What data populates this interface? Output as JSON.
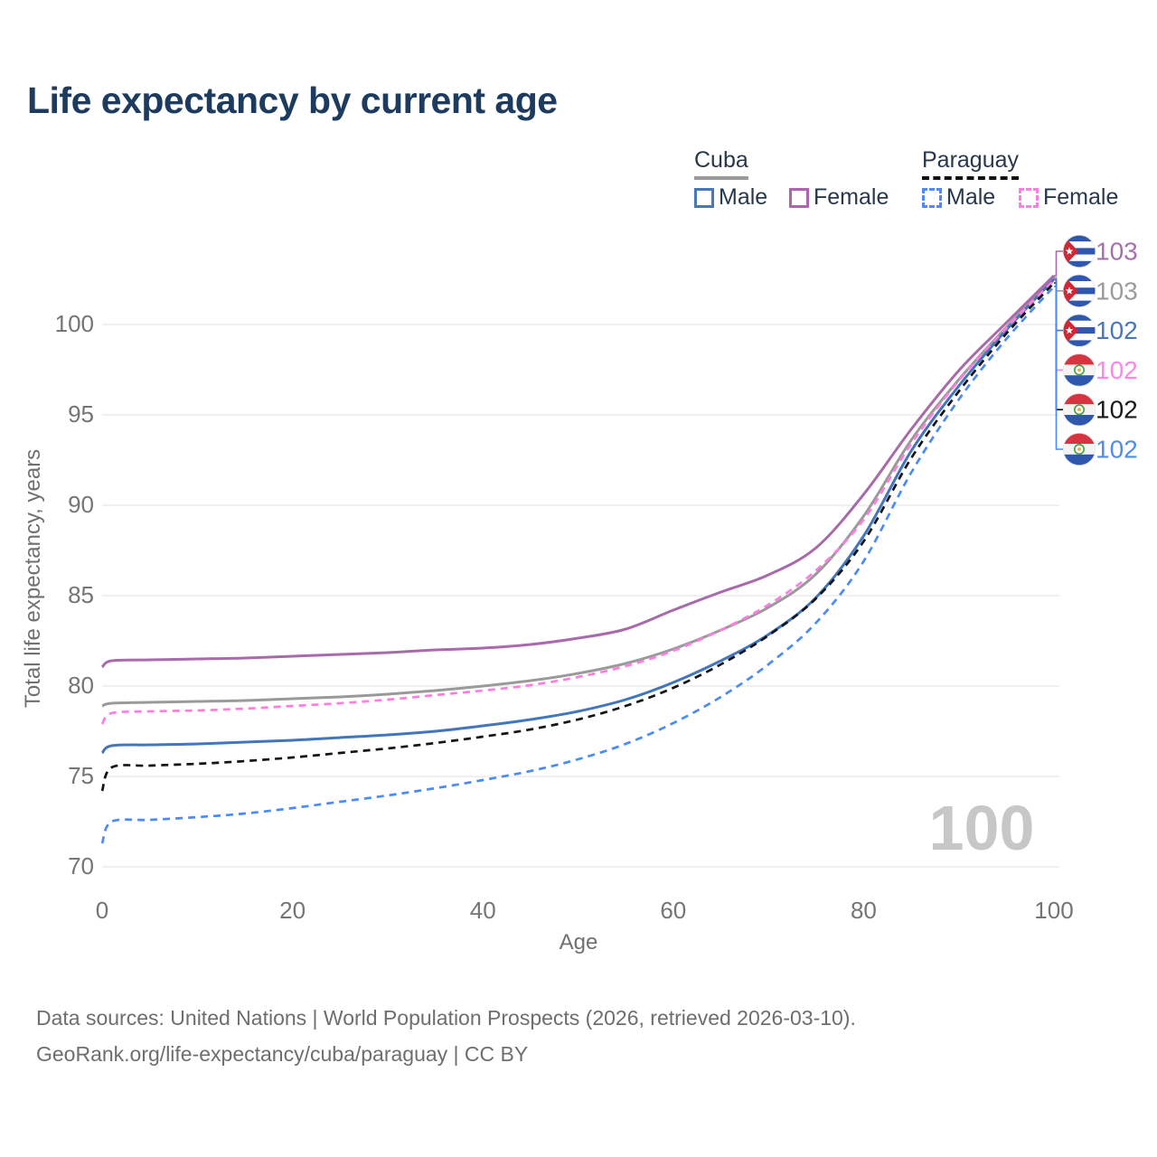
{
  "title": "Life expectancy by current age",
  "legend": {
    "groups": [
      {
        "label": "Cuba",
        "line_style": "solid",
        "underline_color": "#999999",
        "items": [
          {
            "label": "Male",
            "color": "#4878b8"
          },
          {
            "label": "Female",
            "color": "#ad64ad"
          }
        ]
      },
      {
        "label": "Paraguay",
        "line_style": "dashed",
        "underline_color": "#111111",
        "items": [
          {
            "label": "Male",
            "color": "#4b8bf5"
          },
          {
            "label": "Female",
            "color": "#ff7de1"
          }
        ]
      }
    ]
  },
  "watermark": "100",
  "footer": {
    "line1": "Data sources: United Nations | World Population Prospects (2026, retrieved 2026-03-10).",
    "line2": "GeoRank.org/life-expectancy/cuba/paraguay | CC BY"
  },
  "chart_data": {
    "type": "line",
    "title": "Life expectancy by current age",
    "xlabel": "Age",
    "ylabel": "Total life expectancy, years",
    "xlim": [
      0,
      100
    ],
    "ylim": [
      70,
      103
    ],
    "x_ticks": [
      0,
      20,
      40,
      60,
      80,
      100
    ],
    "y_ticks": [
      70,
      75,
      80,
      85,
      90,
      95,
      100
    ],
    "grid": "horizontal",
    "legend_position": "top-right",
    "ages": [
      0,
      1,
      5,
      10,
      15,
      20,
      25,
      30,
      35,
      40,
      45,
      50,
      55,
      60,
      65,
      70,
      75,
      80,
      85,
      90,
      95,
      100
    ],
    "series": [
      {
        "name": "Cuba Female",
        "country": "Cuba",
        "sex": "Female",
        "color": "#a86aab",
        "dashed": false,
        "end_label": "103",
        "label_color": "#a76fad",
        "values": [
          81.05,
          81.4,
          81.45,
          81.5,
          81.55,
          81.65,
          81.75,
          81.85,
          82.0,
          82.1,
          82.3,
          82.65,
          83.15,
          84.2,
          85.2,
          86.15,
          87.65,
          90.6,
          94.2,
          97.45,
          100.1,
          102.7
        ]
      },
      {
        "name": "Cuba Total",
        "country": "Cuba",
        "sex": "Both",
        "color": "#9a9a9a",
        "dashed": false,
        "end_label": "103",
        "label_color": "#9b9b9b",
        "values": [
          78.9,
          79.05,
          79.1,
          79.15,
          79.2,
          79.3,
          79.4,
          79.55,
          79.75,
          80.0,
          80.3,
          80.7,
          81.25,
          82.05,
          83.1,
          84.35,
          86.2,
          89.4,
          93.6,
          96.95,
          99.85,
          102.6
        ]
      },
      {
        "name": "Cuba Male",
        "country": "Cuba",
        "sex": "Male",
        "color": "#4376ba",
        "dashed": false,
        "end_label": "102",
        "label_color": "#4878b8",
        "values": [
          76.3,
          76.7,
          76.75,
          76.8,
          76.9,
          77.0,
          77.15,
          77.3,
          77.5,
          77.8,
          78.15,
          78.6,
          79.25,
          80.2,
          81.4,
          82.85,
          84.9,
          88.3,
          93.0,
          96.6,
          99.7,
          102.5
        ]
      },
      {
        "name": "Paraguay Female",
        "country": "Paraguay",
        "sex": "Female",
        "color": "#ff7de1",
        "dashed": true,
        "end_label": "102",
        "label_color": "#ff85e6",
        "values": [
          77.9,
          78.5,
          78.6,
          78.65,
          78.75,
          78.9,
          79.05,
          79.25,
          79.5,
          79.75,
          80.05,
          80.5,
          81.1,
          81.95,
          83.1,
          84.5,
          86.4,
          89.2,
          93.4,
          96.9,
          99.8,
          102.45
        ]
      },
      {
        "name": "Paraguay Total",
        "country": "Paraguay",
        "sex": "Both",
        "color": "#141414",
        "dashed": true,
        "end_label": "102",
        "label_color": "#1a1a1a",
        "values": [
          74.2,
          75.5,
          75.6,
          75.7,
          75.85,
          76.05,
          76.3,
          76.55,
          76.85,
          77.2,
          77.6,
          78.15,
          78.9,
          79.9,
          81.2,
          82.8,
          84.85,
          88.0,
          92.6,
          96.3,
          99.5,
          102.3
        ]
      },
      {
        "name": "Paraguay Male",
        "country": "Paraguay",
        "sex": "Male",
        "color": "#4b8bf5",
        "dashed": true,
        "end_label": "102",
        "label_color": "#4c8df5",
        "values": [
          71.3,
          72.5,
          72.6,
          72.75,
          72.95,
          73.25,
          73.6,
          73.95,
          74.35,
          74.8,
          75.3,
          75.95,
          76.8,
          77.95,
          79.4,
          81.2,
          83.5,
          86.9,
          91.8,
          95.85,
          99.2,
          102.1
        ]
      }
    ]
  }
}
